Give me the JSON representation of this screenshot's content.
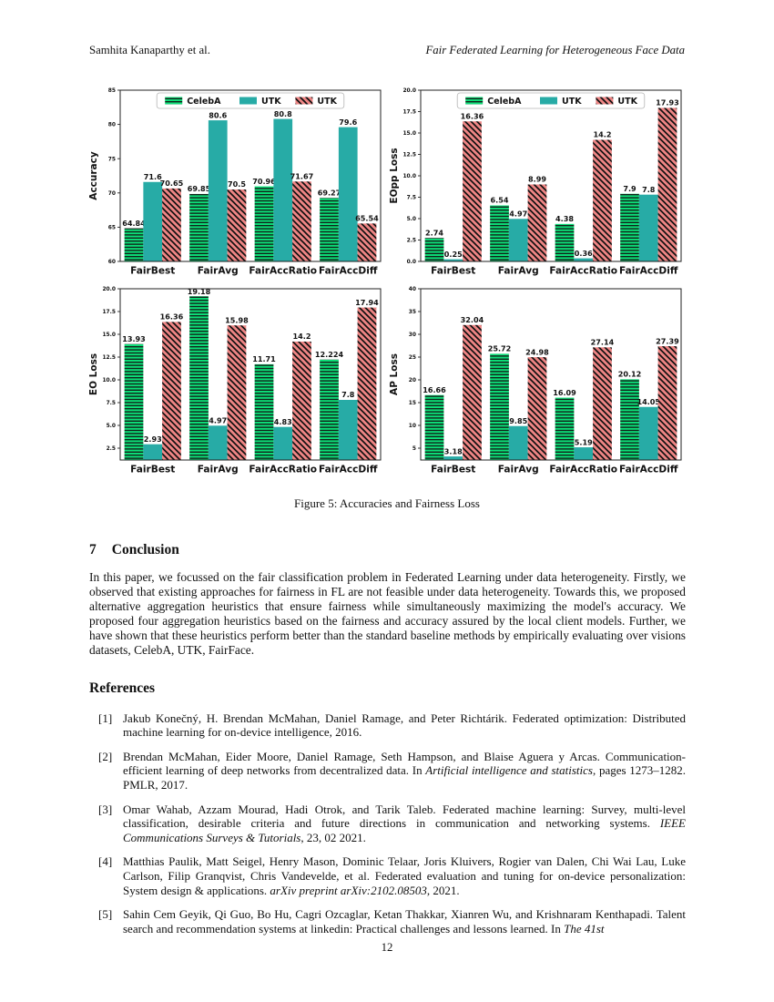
{
  "page": {
    "header_left": "Samhita Kanaparthy et al.",
    "header_right": "Fair Federated Learning for Heterogeneous Face Data",
    "page_number": "12"
  },
  "figure": {
    "caption": "Figure 5: Accuracies and Fairness Loss"
  },
  "colors": {
    "celeba_green": "#0cdf78",
    "utk_teal": "#27aba6",
    "utk_salmon": "#ee8584",
    "hatch_line": "#111111",
    "axis": "#222222"
  },
  "chart_data": [
    {
      "type": "bar",
      "ylabel": "Accuracy",
      "categories": [
        "FairBest",
        "FairAvg",
        "FairAccRatio",
        "FairAccDiff"
      ],
      "series": [
        {
          "name": "CelebA",
          "color": "#0cdf78",
          "hatch": "horizontal",
          "values": [
            64.84,
            69.85,
            70.96,
            69.27
          ],
          "labels": [
            "64.84",
            "69.85",
            "70.96",
            "69.27"
          ]
        },
        {
          "name": "UTK",
          "color": "#27aba6",
          "hatch": "none",
          "values": [
            71.6,
            80.6,
            80.8,
            79.6
          ],
          "labels": [
            "71.6",
            "80.6",
            "80.8",
            "79.6"
          ]
        },
        {
          "name": "UTK",
          "color": "#ee8584",
          "hatch": "diagonal",
          "values": [
            70.65,
            70.5,
            71.67,
            65.54
          ],
          "labels": [
            "70.65",
            "70.5",
            "71.67",
            "65.54"
          ]
        }
      ],
      "ylim": [
        60,
        85
      ],
      "ytick_values": [
        60,
        65,
        70,
        75,
        80,
        85
      ],
      "ytick_labels": [
        "60",
        "65",
        "70",
        "75",
        "80",
        "85"
      ],
      "grid": false,
      "legend": true,
      "legend_position": "upper center"
    },
    {
      "type": "bar",
      "ylabel": "EOpp Loss",
      "categories": [
        "FairBest",
        "FairAvg",
        "FairAccRatio",
        "FairAccDiff"
      ],
      "series": [
        {
          "name": "CelebA",
          "color": "#0cdf78",
          "hatch": "horizontal",
          "values": [
            2.74,
            6.54,
            4.38,
            7.9
          ],
          "labels": [
            "2.74",
            "6.54",
            "4.38",
            "7.9"
          ]
        },
        {
          "name": "UTK",
          "color": "#27aba6",
          "hatch": "none",
          "values": [
            0.25,
            4.97,
            0.36,
            7.8
          ],
          "labels": [
            "0.25",
            "4.97",
            "0.36",
            "7.8"
          ]
        },
        {
          "name": "UTK",
          "color": "#ee8584",
          "hatch": "diagonal",
          "values": [
            16.36,
            8.99,
            14.2,
            17.93
          ],
          "labels": [
            "16.36",
            "8.99",
            "14.2",
            "17.93"
          ]
        }
      ],
      "ylim": [
        0,
        20
      ],
      "ytick_values": [
        0,
        2.5,
        5,
        7.5,
        10,
        12.5,
        15,
        17.5,
        20
      ],
      "ytick_labels": [
        "0.0",
        "2.5",
        "5.0",
        "7.5",
        "10.0",
        "12.5",
        "15.0",
        "17.5",
        "20.0"
      ],
      "grid": false,
      "legend": true,
      "legend_position": "upper center"
    },
    {
      "type": "bar",
      "ylabel": "EO Loss",
      "categories": [
        "FairBest",
        "FairAvg",
        "FairAccRatio",
        "FairAccDiff"
      ],
      "series": [
        {
          "name": "CelebA",
          "color": "#0cdf78",
          "hatch": "horizontal",
          "values": [
            13.93,
            19.18,
            11.71,
            12.224
          ],
          "labels": [
            "13.93",
            "19.18",
            "11.71",
            "12.224"
          ]
        },
        {
          "name": "UTK",
          "color": "#27aba6",
          "hatch": "none",
          "values": [
            2.93,
            4.97,
            4.83,
            7.8
          ],
          "labels": [
            "2.93",
            "4.97",
            "4.83",
            "7.8"
          ]
        },
        {
          "name": "UTK",
          "color": "#ee8584",
          "hatch": "diagonal",
          "values": [
            16.36,
            15.98,
            14.2,
            17.94
          ],
          "labels": [
            "16.36",
            "15.98",
            "14.2",
            "17.94"
          ]
        }
      ],
      "ylim": [
        1.2,
        20
      ],
      "ytick_values": [
        2.5,
        5,
        7.5,
        10,
        12.5,
        15,
        17.5,
        20
      ],
      "ytick_labels": [
        "2.5",
        "5.0",
        "7.5",
        "10.0",
        "12.5",
        "15.0",
        "17.5",
        "20.0"
      ],
      "grid": false,
      "legend": false,
      "legend_position": "none"
    },
    {
      "type": "bar",
      "ylabel": "AP Loss",
      "categories": [
        "FairBest",
        "FairAvg",
        "FairAccRatio",
        "FairAccDiff"
      ],
      "series": [
        {
          "name": "CelebA",
          "color": "#0cdf78",
          "hatch": "horizontal",
          "values": [
            16.66,
            25.72,
            16.09,
            20.12
          ],
          "labels": [
            "16.66",
            "25.72",
            "16.09",
            "20.12"
          ]
        },
        {
          "name": "UTK",
          "color": "#27aba6",
          "hatch": "none",
          "values": [
            3.18,
            9.85,
            5.19,
            14.05
          ],
          "labels": [
            "3.18",
            "9.85",
            "5.19",
            "14.05"
          ]
        },
        {
          "name": "UTK",
          "color": "#ee8584",
          "hatch": "diagonal",
          "values": [
            32.04,
            24.98,
            27.14,
            27.39
          ],
          "labels": [
            "32.04",
            "24.98",
            "27.14",
            "27.39"
          ]
        }
      ],
      "ylim": [
        2.4,
        40
      ],
      "ytick_values": [
        5,
        10,
        15,
        20,
        25,
        30,
        35,
        40
      ],
      "ytick_labels": [
        "5",
        "10",
        "15",
        "20",
        "25",
        "30",
        "35",
        "40"
      ],
      "grid": false,
      "legend": false,
      "legend_position": "none"
    }
  ],
  "section": {
    "number": "7",
    "title": "Conclusion",
    "body": "In this paper, we focussed on the fair classification problem in Federated Learning under data heterogeneity. Firstly, we observed that existing approaches for fairness in FL are not feasible under data heterogeneity. Towards this, we proposed alternative aggregation heuristics that ensure fairness while simultaneously maximizing the model's accuracy. We proposed four aggregation heuristics based on the fairness and accuracy assured by the local client models. Further, we have shown that these heuristics perform better than the standard baseline methods by empirically evaluating over visions datasets, CelebA, UTK, FairFace."
  },
  "references": {
    "title": "References",
    "items": [
      {
        "num": "[1]",
        "segments": [
          {
            "text": "Jakub Konečný, H. Brendan McMahan, Daniel Ramage, and Peter Richtárik. Federated optimization: Distributed machine learning for on-device intelligence, 2016.",
            "italic": false
          }
        ]
      },
      {
        "num": "[2]",
        "segments": [
          {
            "text": "Brendan McMahan, Eider Moore, Daniel Ramage, Seth Hampson, and Blaise Aguera y Arcas. Communication-efficient learning of deep networks from decentralized data.  In ",
            "italic": false
          },
          {
            "text": "Artificial intelligence and statistics",
            "italic": true
          },
          {
            "text": ", pages 1273–1282. PMLR, 2017.",
            "italic": false
          }
        ]
      },
      {
        "num": "[3]",
        "segments": [
          {
            "text": "Omar Wahab, Azzam Mourad, Hadi Otrok, and Tarik Taleb.  Federated machine learning: Survey, multi-level classification, desirable criteria and future directions in communication and networking systems.  ",
            "italic": false
          },
          {
            "text": "IEEE Communications Surveys & Tutorials",
            "italic": true
          },
          {
            "text": ", 23, 02 2021.",
            "italic": false
          }
        ]
      },
      {
        "num": "[4]",
        "segments": [
          {
            "text": "Matthias Paulik, Matt Seigel, Henry Mason, Dominic Telaar, Joris Kluivers, Rogier van Dalen, Chi Wai Lau, Luke Carlson, Filip Granqvist, Chris Vandevelde, et al.  Federated evaluation and tuning for on-device personalization: System design & applications.  ",
            "italic": false
          },
          {
            "text": "arXiv preprint arXiv:2102.08503",
            "italic": true
          },
          {
            "text": ", 2021.",
            "italic": false
          }
        ]
      },
      {
        "num": "[5]",
        "segments": [
          {
            "text": "Sahin Cem Geyik, Qi Guo, Bo Hu, Cagri Ozcaglar, Ketan Thakkar, Xianren Wu, and Krishnaram Kenthapadi. Talent search and recommendation systems at linkedin: Practical challenges and lessons learned.  In ",
            "italic": false
          },
          {
            "text": "The 41st",
            "italic": true
          }
        ]
      }
    ]
  }
}
